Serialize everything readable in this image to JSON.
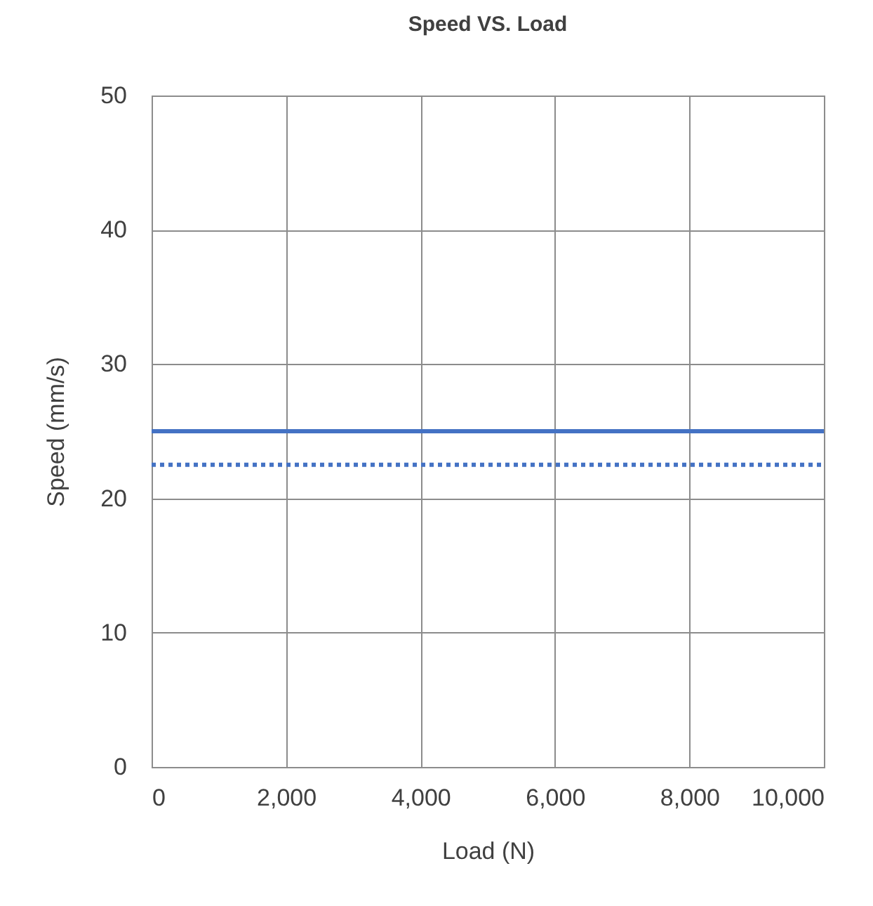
{
  "chart_data": {
    "type": "line",
    "title": "Speed VS. Load",
    "xlabel": "Load (N)",
    "ylabel": "Speed (mm/s)",
    "x": [
      0,
      10000
    ],
    "series": [
      {
        "color": "#4472c4",
        "line_style": "solid",
        "values": [
          25,
          25
        ]
      },
      {
        "color": "#4472c4",
        "line_style": "dotted",
        "values": [
          22.5,
          22.5
        ]
      }
    ],
    "xlim": [
      0,
      10000
    ],
    "xticks": [
      0,
      {
        "value": 2000,
        "label": "2,000"
      },
      {
        "value": 4000,
        "label": "4,000"
      },
      {
        "value": 6000,
        "label": "6,000"
      },
      {
        "value": 8000,
        "label": "8,000"
      },
      {
        "value": 10000,
        "label": "10,000"
      }
    ],
    "ylim": [
      0,
      50
    ],
    "yticks": [
      0,
      10,
      20,
      30,
      40,
      50
    ],
    "grid": true
  }
}
